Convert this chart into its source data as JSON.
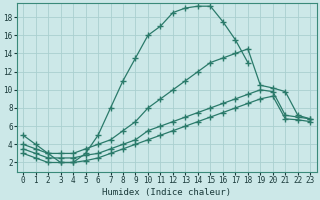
{
  "xlabel": "Humidex (Indice chaleur)",
  "bg_color": "#cce8e8",
  "grid_color": "#aad0d0",
  "line_color": "#2a7a6a",
  "xlim": [
    -0.5,
    23.5
  ],
  "ylim": [
    1,
    19.5
  ],
  "xticks": [
    0,
    1,
    2,
    3,
    4,
    5,
    6,
    7,
    8,
    9,
    10,
    11,
    12,
    13,
    14,
    15,
    16,
    17,
    18,
    19,
    20,
    21,
    22,
    23
  ],
  "yticks": [
    2,
    4,
    6,
    8,
    10,
    12,
    14,
    16,
    18
  ],
  "series": [
    {
      "x": [
        0,
        1,
        2,
        3,
        4,
        5,
        6,
        7,
        8,
        9,
        10,
        11,
        12,
        13,
        14,
        15,
        16,
        17,
        18
      ],
      "y": [
        5,
        4,
        3,
        2,
        2,
        3,
        5,
        8,
        11,
        13.5,
        16,
        17,
        18.5,
        19,
        19.2,
        19.2,
        17.5,
        15.5,
        13
      ]
    },
    {
      "x": [
        0,
        1,
        2,
        3,
        4,
        5,
        6,
        7,
        8,
        9,
        10,
        11,
        12,
        13,
        14,
        15,
        16,
        17,
        18,
        19,
        20,
        21,
        22,
        23
      ],
      "y": [
        4,
        3.5,
        3,
        3,
        3,
        3.5,
        4,
        4.5,
        5.5,
        6.5,
        8,
        9,
        10,
        11,
        12,
        13,
        13.5,
        14,
        14.5,
        10.5,
        10.2,
        9.8,
        7.2,
        6.8
      ]
    },
    {
      "x": [
        0,
        1,
        2,
        3,
        4,
        5,
        6,
        7,
        8,
        9,
        10,
        11,
        12,
        13,
        14,
        15,
        16,
        17,
        18,
        19,
        20,
        21,
        22,
        23
      ],
      "y": [
        3.5,
        3,
        2.5,
        2.5,
        2.5,
        2.8,
        3,
        3.5,
        4,
        4.5,
        5.5,
        6,
        6.5,
        7,
        7.5,
        8,
        8.5,
        9,
        9.5,
        10,
        9.8,
        7.2,
        7,
        6.8
      ]
    },
    {
      "x": [
        0,
        1,
        2,
        3,
        4,
        5,
        6,
        7,
        8,
        9,
        10,
        11,
        12,
        13,
        14,
        15,
        16,
        17,
        18,
        19,
        20,
        21,
        22,
        23
      ],
      "y": [
        3,
        2.5,
        2,
        2,
        2,
        2.2,
        2.5,
        3,
        3.5,
        4,
        4.5,
        5,
        5.5,
        6,
        6.5,
        7,
        7.5,
        8,
        8.5,
        9,
        9.3,
        6.8,
        6.7,
        6.5
      ]
    }
  ]
}
